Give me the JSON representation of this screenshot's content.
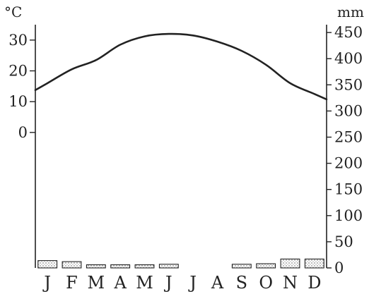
{
  "chart_data": {
    "type": "climograph",
    "left_axis": {
      "unit": "°C",
      "ticks": [
        0,
        10,
        20,
        30
      ],
      "range": [
        -44,
        35
      ]
    },
    "right_axis": {
      "unit": "mm",
      "ticks": [
        0,
        50,
        100,
        150,
        200,
        250,
        300,
        350,
        400,
        450
      ],
      "range": [
        0,
        465
      ]
    },
    "categories": [
      "J",
      "F",
      "M",
      "A",
      "M",
      "J",
      "J",
      "A",
      "S",
      "O",
      "N",
      "D"
    ],
    "series": [
      {
        "kind": "line",
        "axis": "left",
        "values": [
          16,
          20.5,
          23.5,
          28.5,
          31.2,
          32,
          31.5,
          29.5,
          26.5,
          22,
          16,
          12.5
        ]
      },
      {
        "kind": "bar",
        "axis": "right",
        "values": [
          14,
          12,
          6,
          6,
          6,
          7,
          0,
          0,
          7,
          8,
          17,
          17
        ]
      }
    ]
  }
}
